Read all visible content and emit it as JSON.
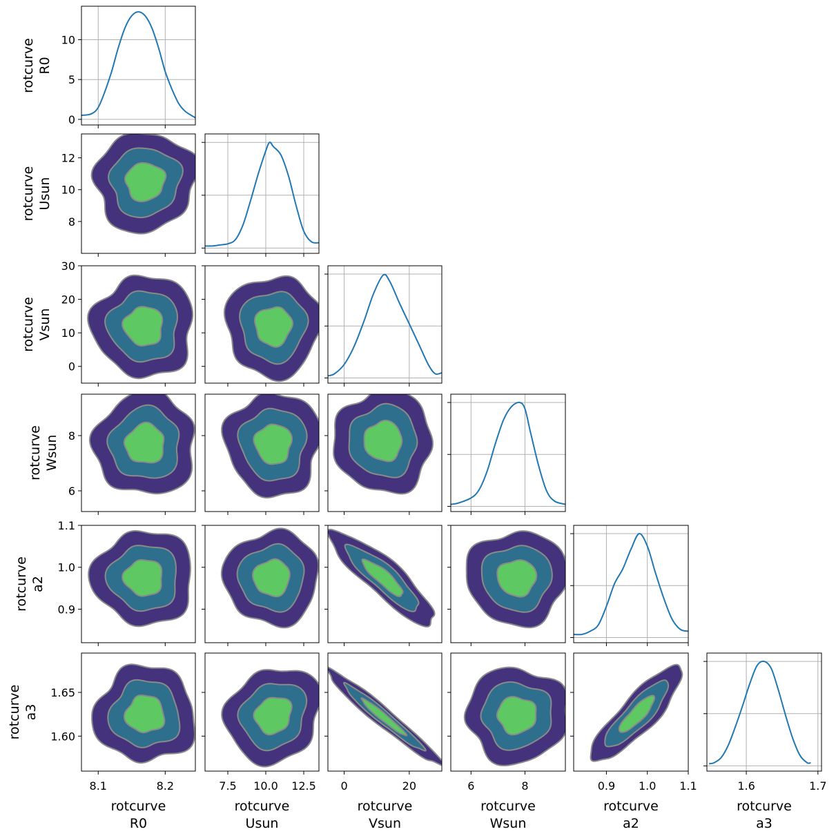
{
  "chart_data": {
    "type": "corner",
    "params": [
      {
        "key": "R0",
        "label_lines": [
          "rotcurve",
          "R0"
        ],
        "range": [
          8.075,
          8.245
        ],
        "ticks": [
          8.1,
          8.2
        ],
        "tick_labels": [
          "8.1",
          "8.2"
        ]
      },
      {
        "key": "Usun",
        "label_lines": [
          "rotcurve",
          "Usun"
        ],
        "range": [
          6.0,
          13.5
        ],
        "ticks": [
          7.5,
          10.0,
          12.5
        ],
        "tick_labels": [
          "7.5",
          "10.0",
          "12.5"
        ],
        "yticks": [
          8,
          10,
          12
        ],
        "ytick_labels": [
          "8",
          "10",
          "12"
        ]
      },
      {
        "key": "Vsun",
        "label_lines": [
          "rotcurve",
          "Vsun"
        ],
        "range": [
          -5.0,
          30.0
        ],
        "ticks": [
          0,
          20
        ],
        "tick_labels": [
          "0",
          "20"
        ],
        "yticks": [
          0,
          10,
          20,
          30
        ],
        "ytick_labels": [
          "0",
          "10",
          "20",
          "30"
        ]
      },
      {
        "key": "Wsun",
        "label_lines": [
          "rotcurve",
          "Wsun"
        ],
        "range": [
          5.25,
          9.5
        ],
        "ticks": [
          6,
          8
        ],
        "tick_labels": [
          "6",
          "8"
        ],
        "yticks": [
          6,
          8
        ],
        "ytick_labels": [
          "6",
          "8"
        ]
      },
      {
        "key": "a2",
        "label_lines": [
          "rotcurve",
          "a2"
        ],
        "range": [
          0.82,
          1.1
        ],
        "ticks": [
          0.9,
          1.0,
          1.1
        ],
        "tick_labels": [
          "0.9",
          "1.0",
          "1.1"
        ]
      },
      {
        "key": "a3",
        "label_lines": [
          "rotcurve",
          "a3"
        ],
        "range": [
          1.56,
          1.695
        ],
        "ticks": [
          1.6,
          1.65
        ],
        "tick_labels": [
          "1.60",
          "1.65"
        ],
        "xticks": [
          1.6,
          1.7
        ],
        "xtick_labels": [
          "1.6",
          "1.7"
        ],
        "xrange": [
          1.545,
          1.705
        ]
      }
    ],
    "diagonal_kde": [
      {
        "param": "R0",
        "ylim": [
          -0.7,
          14.2
        ],
        "yticks": [
          0,
          5,
          10
        ],
        "ytick_labels": [
          "0",
          "5",
          "10"
        ],
        "x": [
          8.075,
          8.09,
          8.1,
          8.11,
          8.12,
          8.13,
          8.14,
          8.15,
          8.16,
          8.17,
          8.18,
          8.19,
          8.2,
          8.21,
          8.22,
          8.23,
          8.245
        ],
        "y": [
          0.5,
          0.7,
          1.5,
          3.5,
          6.0,
          9.0,
          11.5,
          13.0,
          13.5,
          13.0,
          11.5,
          9.0,
          6.0,
          3.8,
          2.0,
          1.0,
          0.2
        ]
      },
      {
        "param": "Usun",
        "x": [
          6.0,
          6.5,
          7.0,
          7.5,
          8.0,
          8.5,
          9.0,
          9.5,
          10.0,
          10.25,
          10.5,
          11.0,
          11.5,
          12.0,
          12.5,
          13.0,
          13.5
        ],
        "y": [
          0.02,
          0.02,
          0.03,
          0.04,
          0.08,
          0.22,
          0.45,
          0.7,
          0.92,
          1.0,
          0.96,
          0.88,
          0.68,
          0.4,
          0.16,
          0.06,
          0.05
        ]
      },
      {
        "param": "Vsun",
        "x": [
          -5,
          -3,
          0,
          3,
          6,
          9,
          12,
          14,
          17,
          20,
          23,
          26,
          28,
          30
        ],
        "y": [
          0.02,
          0.04,
          0.13,
          0.3,
          0.54,
          0.81,
          0.99,
          0.93,
          0.72,
          0.52,
          0.32,
          0.12,
          0.04,
          0.05
        ]
      },
      {
        "param": "Wsun",
        "x": [
          5.25,
          5.5,
          6.0,
          6.3,
          6.6,
          6.9,
          7.2,
          7.5,
          7.8,
          8.0,
          8.2,
          8.5,
          8.8,
          9.1,
          9.5
        ],
        "y": [
          0.02,
          0.03,
          0.08,
          0.16,
          0.34,
          0.6,
          0.83,
          0.96,
          1.0,
          0.94,
          0.72,
          0.4,
          0.15,
          0.05,
          0.02
        ]
      },
      {
        "param": "a2",
        "x": [
          0.82,
          0.84,
          0.86,
          0.88,
          0.9,
          0.92,
          0.94,
          0.96,
          0.98,
          1.0,
          1.02,
          1.04,
          1.06,
          1.08,
          1.1
        ],
        "y": [
          0.03,
          0.03,
          0.06,
          0.12,
          0.3,
          0.52,
          0.66,
          0.85,
          1.0,
          0.88,
          0.62,
          0.38,
          0.18,
          0.08,
          0.06
        ]
      },
      {
        "param": "a3",
        "x": [
          1.548,
          1.555,
          1.565,
          1.575,
          1.585,
          1.595,
          1.605,
          1.615,
          1.625,
          1.635,
          1.645,
          1.655,
          1.665,
          1.675,
          1.685,
          1.69
        ],
        "y": [
          0.02,
          0.03,
          0.08,
          0.2,
          0.38,
          0.58,
          0.79,
          0.96,
          1.0,
          0.93,
          0.72,
          0.48,
          0.26,
          0.1,
          0.03,
          0.03
        ]
      }
    ],
    "pair_contours": [
      {
        "x": "R0",
        "y": "Usun",
        "center": [
          8.17,
          10.5
        ],
        "spread": [
          0.029,
          1.2
        ],
        "corr": 0.05
      },
      {
        "x": "R0",
        "y": "Vsun",
        "center": [
          8.168,
          12.0
        ],
        "spread": [
          0.029,
          5.8
        ],
        "corr": 0.0
      },
      {
        "x": "R0",
        "y": "Wsun",
        "center": [
          8.17,
          7.7
        ],
        "spread": [
          0.029,
          0.72
        ],
        "corr": 0.0
      },
      {
        "x": "R0",
        "y": "a2",
        "center": [
          8.168,
          0.975
        ],
        "spread": [
          0.029,
          0.043
        ],
        "corr": 0.0
      },
      {
        "x": "R0",
        "y": "a3",
        "center": [
          8.17,
          1.625
        ],
        "spread": [
          0.029,
          0.021
        ],
        "corr": 0.0
      },
      {
        "x": "Usun",
        "y": "Vsun",
        "center": [
          10.5,
          12.0
        ],
        "spread": [
          1.2,
          5.8
        ],
        "corr": 0.0
      },
      {
        "x": "Usun",
        "y": "Wsun",
        "center": [
          10.5,
          7.7
        ],
        "spread": [
          1.2,
          0.72
        ],
        "corr": 0.0
      },
      {
        "x": "Usun",
        "y": "a2",
        "center": [
          10.4,
          0.975
        ],
        "spread": [
          1.2,
          0.043
        ],
        "corr": 0.0
      },
      {
        "x": "Usun",
        "y": "a3",
        "center": [
          10.5,
          1.624
        ],
        "spread": [
          1.2,
          0.021
        ],
        "corr": 0.15
      },
      {
        "x": "Vsun",
        "y": "Wsun",
        "center": [
          12.0,
          7.8
        ],
        "spread": [
          5.8,
          0.72
        ],
        "corr": 0.0
      },
      {
        "x": "Vsun",
        "y": "a2",
        "center": [
          12.0,
          0.975
        ],
        "spread": [
          6.2,
          0.043
        ],
        "corr": -0.88
      },
      {
        "x": "Vsun",
        "y": "a3",
        "center": [
          12.0,
          1.622
        ],
        "spread": [
          6.8,
          0.021
        ],
        "corr": -0.97
      },
      {
        "x": "Wsun",
        "y": "a2",
        "center": [
          7.7,
          0.975
        ],
        "spread": [
          0.72,
          0.043
        ],
        "corr": 0.0
      },
      {
        "x": "Wsun",
        "y": "a3",
        "center": [
          7.7,
          1.624
        ],
        "spread": [
          0.72,
          0.021
        ],
        "corr": 0.0
      },
      {
        "x": "a2",
        "y": "a3",
        "center": [
          0.975,
          1.625
        ],
        "spread": [
          0.043,
          0.021
        ],
        "corr": 0.86
      }
    ],
    "contour_levels_sigma": [
      2.6,
      1.8,
      1.0
    ],
    "contour_fill_colors": [
      "#45327d",
      "#2e6f8e",
      "#5ec962"
    ],
    "contour_edge_color": "#8a8a8a",
    "line_color": "#1f77b4",
    "grid_on_diagonal": true,
    "legend": "none"
  }
}
